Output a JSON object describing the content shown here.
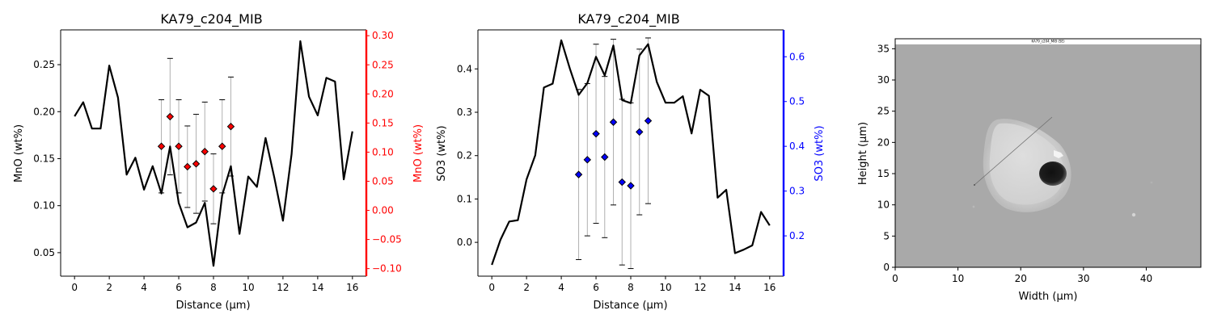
{
  "chart_data": [
    {
      "type": "line",
      "title": "KA79_c204_MIB",
      "xlabel": "Distance (µm)",
      "ylabel": "MnO (wt%)",
      "y2label": "MnO (wt%)",
      "xlim": [
        -0.8,
        16.8
      ],
      "ylim": [
        0.025,
        0.287
      ],
      "y2lim": [
        -0.113,
        0.31
      ],
      "xticks": [
        0,
        2,
        4,
        6,
        8,
        10,
        12,
        14,
        16
      ],
      "yticks": [
        0.05,
        0.1,
        0.15,
        0.2,
        0.25
      ],
      "ytick_labels": [
        "0.05",
        "0.10",
        "0.15",
        "0.20",
        "0.25"
      ],
      "y2ticks": [
        -0.1,
        -0.05,
        0.0,
        0.05,
        0.1,
        0.15,
        0.2,
        0.25,
        0.3
      ],
      "y2tick_labels": [
        "−0.10",
        "−0.05",
        "0.00",
        "0.05",
        "0.10",
        "0.15",
        "0.20",
        "0.25",
        "0.30"
      ],
      "secondary_color": "#ff0000",
      "line_color": "#000000",
      "line": {
        "x": [
          0,
          0.5,
          1,
          1.5,
          2,
          2.5,
          3,
          3.5,
          4,
          4.5,
          5,
          5.5,
          6,
          6.5,
          7,
          7.5,
          8,
          8.5,
          9,
          9.5,
          10,
          10.5,
          11,
          11.5,
          12,
          12.5,
          13,
          13.5,
          14,
          14.5,
          15,
          15.5,
          16
        ],
        "y": [
          0.195,
          0.21,
          0.182,
          0.182,
          0.249,
          0.215,
          0.133,
          0.151,
          0.117,
          0.142,
          0.113,
          0.163,
          0.103,
          0.077,
          0.082,
          0.103,
          0.036,
          0.111,
          0.142,
          0.07,
          0.131,
          0.12,
          0.172,
          0.13,
          0.084,
          0.155,
          0.275,
          0.216,
          0.196,
          0.236,
          0.232,
          0.128,
          0.179
        ]
      },
      "points": {
        "x": [
          5,
          5.5,
          6,
          6.5,
          7,
          7.5,
          8,
          8.5,
          9
        ],
        "y": [
          0.11,
          0.161,
          0.11,
          0.075,
          0.08,
          0.101,
          0.037,
          0.11,
          0.144
        ],
        "err": [
          0.08,
          0.1,
          0.08,
          0.07,
          0.085,
          0.085,
          0.06,
          0.08,
          0.085
        ],
        "color": "#ff0000"
      }
    },
    {
      "type": "line",
      "title": "KA79_c204_MIB",
      "xlabel": "Distance (µm)",
      "ylabel": "SO3 (wt%)",
      "y2label": "SO3 (wt%)",
      "xlim": [
        -0.8,
        16.8
      ],
      "ylim": [
        -0.078,
        0.49
      ],
      "y2lim": [
        0.11,
        0.66
      ],
      "xticks": [
        0,
        2,
        4,
        6,
        8,
        10,
        12,
        14,
        16
      ],
      "yticks": [
        0.0,
        0.1,
        0.2,
        0.3,
        0.4
      ],
      "ytick_labels": [
        "0.0",
        "0.1",
        "0.2",
        "0.3",
        "0.4"
      ],
      "y2ticks": [
        0.2,
        0.3,
        0.4,
        0.5,
        0.6
      ],
      "y2tick_labels": [
        "0.2",
        "0.3",
        "0.4",
        "0.5",
        "0.6"
      ],
      "secondary_color": "#0000ff",
      "line_color": "#000000",
      "line": {
        "x": [
          0,
          0.5,
          1,
          1.5,
          2,
          2.5,
          3,
          3.5,
          4,
          4.5,
          5,
          5.5,
          6,
          6.5,
          7,
          7.5,
          8,
          8.5,
          9,
          9.5,
          10,
          10.5,
          11,
          11.5,
          12,
          12.5,
          13,
          13.5,
          14,
          14.5,
          15,
          15.5,
          16
        ],
        "y": [
          -0.052,
          0.006,
          0.048,
          0.051,
          0.145,
          0.201,
          0.357,
          0.366,
          0.466,
          0.4,
          0.34,
          0.367,
          0.428,
          0.385,
          0.454,
          0.328,
          0.321,
          0.431,
          0.457,
          0.37,
          0.322,
          0.322,
          0.337,
          0.251,
          0.352,
          0.338,
          0.103,
          0.121,
          -0.025,
          -0.017,
          -0.007,
          0.07,
          0.039
        ]
      },
      "points": {
        "x": [
          5,
          5.5,
          6,
          6.5,
          7,
          7.5,
          8,
          8.5,
          9
        ],
        "y": [
          0.337,
          0.37,
          0.428,
          0.376,
          0.454,
          0.32,
          0.312,
          0.432,
          0.457
        ],
        "err": [
          0.19,
          0.17,
          0.2,
          0.18,
          0.185,
          0.185,
          0.185,
          0.185,
          0.185
        ],
        "color": "#0000ff"
      }
    },
    {
      "type": "image",
      "title": "",
      "image_caption": "KA79_c204_MIB (SE)",
      "xlabel": "Width (µm)",
      "ylabel": "Height (µm)",
      "xlim": [
        0,
        48.7
      ],
      "ylim": [
        0,
        36.6
      ],
      "xticks": [
        0,
        10,
        20,
        30,
        40
      ],
      "yticks": [
        0,
        5,
        10,
        15,
        20,
        25,
        30,
        35
      ]
    }
  ]
}
